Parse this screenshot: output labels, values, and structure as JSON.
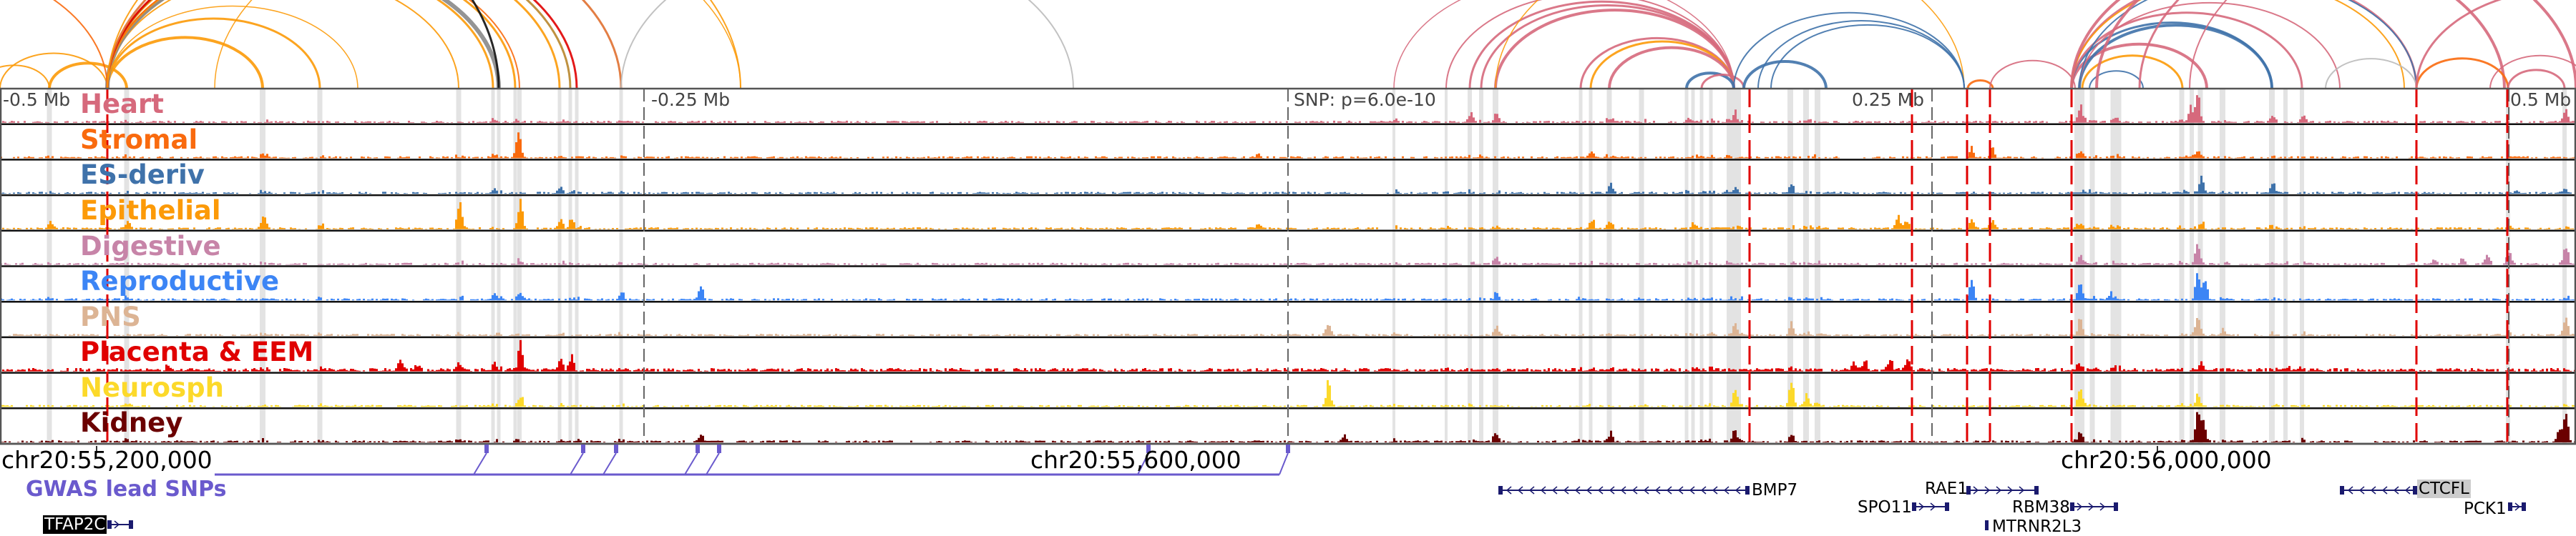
{
  "axis": {
    "labels": [
      "-0.5 Mb",
      "-0.25 Mb",
      "SNP: p=6.0e-10",
      "0.25 Mb",
      "0.5 Mb"
    ]
  },
  "tracks": [
    {
      "name": "Heart",
      "color": "#d6697c"
    },
    {
      "name": "Stromal",
      "color": "#f96a0e"
    },
    {
      "name": "ES-deriv",
      "color": "#3f72aa"
    },
    {
      "name": "Epithelial",
      "color": "#fc9a08"
    },
    {
      "name": "Digestive",
      "color": "#c784a8"
    },
    {
      "name": "Reproductive",
      "color": "#3c85f5"
    },
    {
      "name": "PNS",
      "color": "#dcb494"
    },
    {
      "name": "Placenta & EEM",
      "color": "#e00000"
    },
    {
      "name": "Neurosph",
      "color": "#fcd92a"
    },
    {
      "name": "Kidney",
      "color": "#6b0000"
    }
  ],
  "coordinates": [
    "chr20:55,200,000",
    "chr20:55,600,000",
    "chr20:56,000,000"
  ],
  "gwas": {
    "label": "GWAS lead SNPs",
    "color": "#6a5acd"
  },
  "genes": [
    {
      "name": "TFAP2C",
      "strand": "+",
      "highlight": "black"
    },
    {
      "name": "BMP7",
      "strand": "-"
    },
    {
      "name": "RAE1",
      "strand": "+"
    },
    {
      "name": "SPO11",
      "strand": "+"
    },
    {
      "name": "RBM38",
      "strand": "+"
    },
    {
      "name": "MTRNR2L3",
      "strand": "+"
    },
    {
      "name": "CTCFL",
      "strand": "-",
      "highlight": "gray"
    },
    {
      "name": "PCK1",
      "strand": "+"
    }
  ],
  "gene_color": "#1a1a6e"
}
